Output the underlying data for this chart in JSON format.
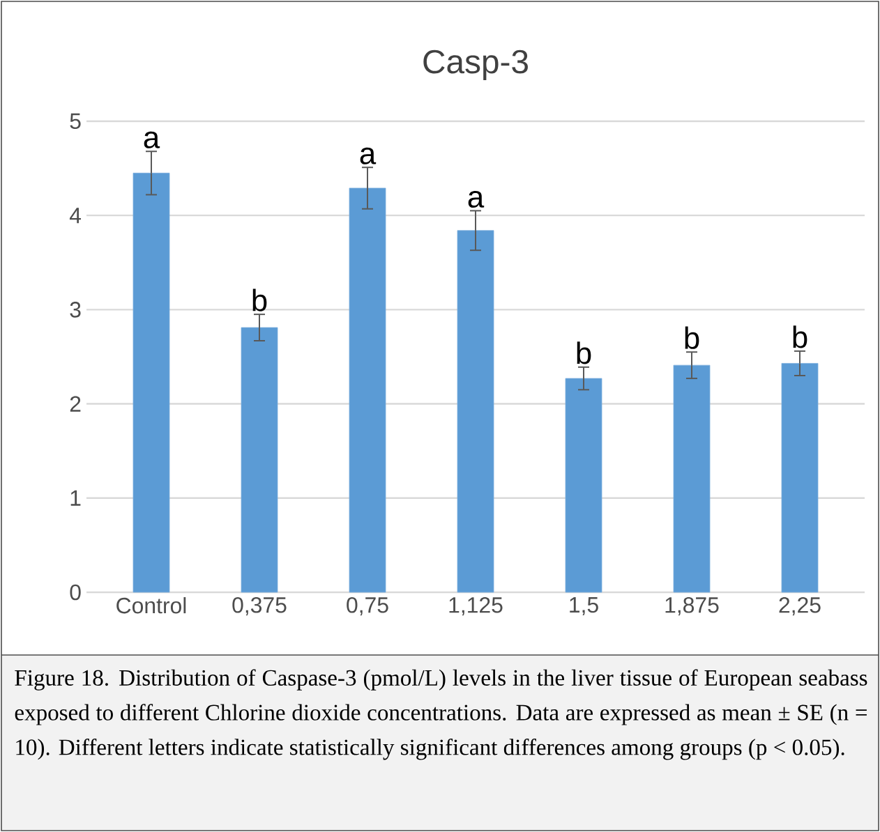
{
  "chart_data": {
    "type": "bar",
    "title": "Casp-3",
    "categories": [
      "Control",
      "0,375",
      "0,75",
      "1,125",
      "1,5",
      "1,875",
      "2,25"
    ],
    "values": [
      4.45,
      2.81,
      4.29,
      3.84,
      2.27,
      2.41,
      2.43
    ],
    "errors": [
      0.23,
      0.14,
      0.22,
      0.21,
      0.12,
      0.14,
      0.13
    ],
    "color": "#5b9bd5",
    "ylim": [
      0,
      5
    ],
    "yticks": [
      0,
      1,
      2,
      3,
      4,
      5
    ],
    "grid": "y",
    "annotations": [
      {
        "text": "a",
        "x": "Control",
        "y": 4.68
      },
      {
        "text": "b",
        "x": "0,375",
        "y": 2.95
      },
      {
        "text": "a",
        "x": "0,75",
        "y": 4.51
      },
      {
        "text": "a",
        "x": "1,125",
        "y": 4.05
      },
      {
        "text": "b",
        "x": "1,5",
        "y": 2.39
      },
      {
        "text": "b",
        "x": "1,875",
        "y": 2.55
      },
      {
        "text": "b",
        "x": "2,25",
        "y": 2.56
      },
      "Figure 18. Distribution of Caspase-3 (pmol/L) levels in the liver tissue of European seabass exposed to different Chlorine dioxide concentrations. Data are expressed as mean ± SE (n = 10). Different letters indicate statistically significant differences among groups (p < 0.05)."
    ]
  }
}
